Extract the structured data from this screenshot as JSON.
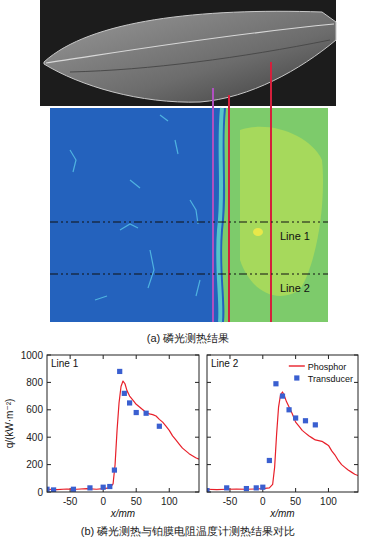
{
  "figure": {
    "heatmap_lines": [
      "Line 1",
      "Line 2"
    ],
    "caption_a": "(a) 磷光测热结果",
    "caption_b": "(b) 磷光测热与铂膜电阻温度计测热结果对比"
  },
  "chart_data": [
    {
      "type": "line",
      "title": "Line 1",
      "x_label": "x/mm",
      "y_label": "q/(kW·m⁻²)",
      "xlim": [
        -85,
        145
      ],
      "ylim": [
        0,
        1000
      ],
      "xticks": [
        -50,
        0,
        50,
        100
      ],
      "yticks": [
        0,
        200,
        400,
        600,
        800,
        1000
      ],
      "series": [
        {
          "name": "Phosphor",
          "type": "line",
          "color": "#e8202a",
          "line_style": "solid",
          "x": [
            -85,
            -70,
            -55,
            -40,
            -25,
            -10,
            0,
            10,
            15,
            18,
            21,
            24,
            27,
            30,
            33,
            36,
            40,
            45,
            50,
            55,
            60,
            65,
            70,
            75,
            80,
            85,
            90,
            95,
            100,
            105,
            110,
            115,
            120,
            125,
            130,
            135,
            140,
            145
          ],
          "values": [
            20,
            18,
            22,
            20,
            25,
            20,
            25,
            30,
            60,
            200,
            450,
            650,
            770,
            810,
            790,
            740,
            700,
            670,
            640,
            620,
            600,
            580,
            570,
            565,
            555,
            530,
            510,
            480,
            450,
            410,
            380,
            350,
            320,
            300,
            280,
            265,
            250,
            240
          ]
        },
        {
          "name": "Transducer",
          "type": "scatter",
          "color": "#3a5fd0",
          "marker": "square",
          "x": [
            -85,
            -75,
            -45,
            -20,
            0,
            10,
            17,
            25,
            32,
            40,
            50,
            65,
            85
          ],
          "values": [
            20,
            15,
            20,
            30,
            35,
            40,
            160,
            880,
            720,
            650,
            580,
            575,
            480
          ]
        }
      ]
    },
    {
      "type": "line",
      "title": "Line 2",
      "x_label": "x/mm",
      "xlim": [
        -85,
        145
      ],
      "ylim": [
        0,
        1000
      ],
      "xticks": [
        -50,
        0,
        50,
        100
      ],
      "yticks": [
        0,
        200,
        400,
        600,
        800,
        1000
      ],
      "tick_labels": "x",
      "legend": "upper right",
      "series": [
        {
          "name": "Phosphor",
          "type": "line",
          "color": "#e8202a",
          "line_style": "solid",
          "x": [
            -85,
            -70,
            -55,
            -40,
            -25,
            -10,
            0,
            10,
            15,
            18,
            21,
            24,
            27,
            30,
            33,
            36,
            40,
            45,
            50,
            55,
            60,
            65,
            70,
            75,
            80,
            85,
            90,
            95,
            100,
            105,
            110,
            115,
            120,
            125,
            130,
            135,
            140,
            145
          ],
          "values": [
            20,
            18,
            20,
            22,
            20,
            22,
            25,
            30,
            55,
            180,
            420,
            620,
            710,
            730,
            700,
            660,
            620,
            570,
            510,
            480,
            450,
            430,
            410,
            395,
            380,
            375,
            370,
            355,
            340,
            300,
            270,
            230,
            200,
            180,
            160,
            145,
            130,
            120
          ]
        },
        {
          "name": "Transducer",
          "type": "scatter",
          "color": "#3a5fd0",
          "marker": "square",
          "x": [
            -85,
            -55,
            -25,
            -10,
            0,
            10,
            20,
            30,
            40,
            50,
            65,
            80
          ],
          "values": [
            10,
            30,
            25,
            30,
            35,
            230,
            790,
            700,
            600,
            540,
            520,
            490
          ]
        }
      ]
    }
  ]
}
